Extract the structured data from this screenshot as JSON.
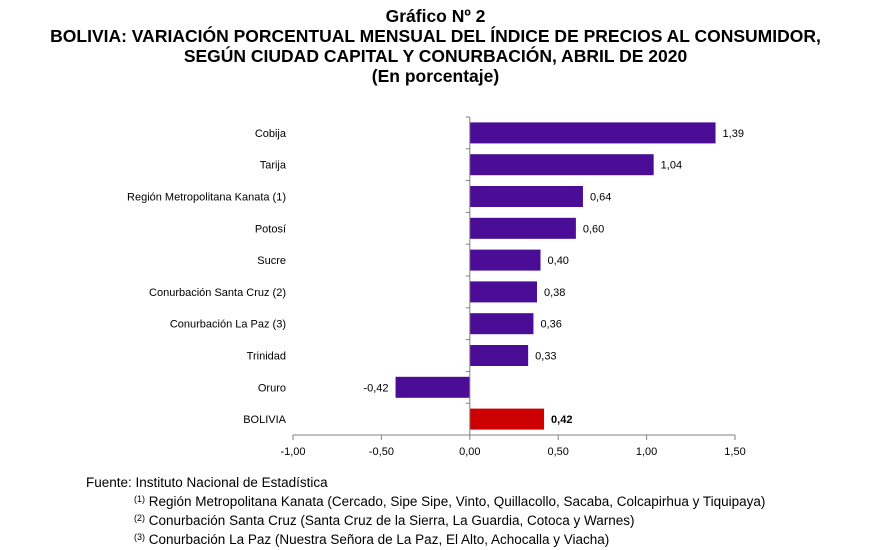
{
  "header": {
    "line1": "Gráfico Nº 2",
    "line2": "BOLIVIA: VARIACIÓN PORCENTUAL MENSUAL DEL ÍNDICE DE PRECIOS AL CONSUMIDOR,",
    "line3": "SEGÚN CIUDAD CAPITAL Y CONURBACIÓN, ABRIL DE 2020",
    "line4": "(En porcentaje)"
  },
  "chart_data": {
    "type": "bar",
    "orientation": "horizontal",
    "categories": [
      "Cobija",
      "Tarija",
      "Región Metropolitana Kanata (1)",
      "Potosí",
      "Sucre",
      "Conurbación Santa Cruz (2)",
      "Conurbación La Paz (3)",
      "Trinidad",
      "Oruro",
      "BOLIVIA"
    ],
    "values": [
      1.39,
      1.04,
      0.64,
      0.6,
      0.4,
      0.38,
      0.36,
      0.33,
      -0.42,
      0.42
    ],
    "value_labels": [
      "1,39",
      "1,04",
      "0,64",
      "0,60",
      "0,40",
      "0,38",
      "0,36",
      "0,33",
      "-0,42",
      "0,42"
    ],
    "xlim": [
      -1.0,
      1.5
    ],
    "xticks": [
      -1.0,
      -0.5,
      0.0,
      0.5,
      1.0,
      1.5
    ],
    "xtick_labels": [
      "-1,00",
      "-0,50",
      "0,00",
      "0,50",
      "1,00",
      "1,50"
    ],
    "bar_color": "#4b0c96",
    "highlight_color": "#cc0000",
    "highlight_category": "BOLIVIA",
    "grid": false
  },
  "notes": {
    "source": "Fuente: Instituto Nacional de Estadística",
    "footnotes": [
      {
        "mark": "(1)",
        "text": "Región Metropolitana Kanata (Cercado, Sipe Sipe, Vinto, Quillacollo, Sacaba, Colcapirhua y Tiquipaya)"
      },
      {
        "mark": "(2)",
        "text": "Conurbación Santa Cruz (Santa Cruz de la Sierra, La Guardia, Cotoca y Warnes)"
      },
      {
        "mark": "(3)",
        "text": "Conurbación La Paz (Nuestra Señora de La Paz, El Alto, Achocalla y Viacha)"
      }
    ]
  }
}
